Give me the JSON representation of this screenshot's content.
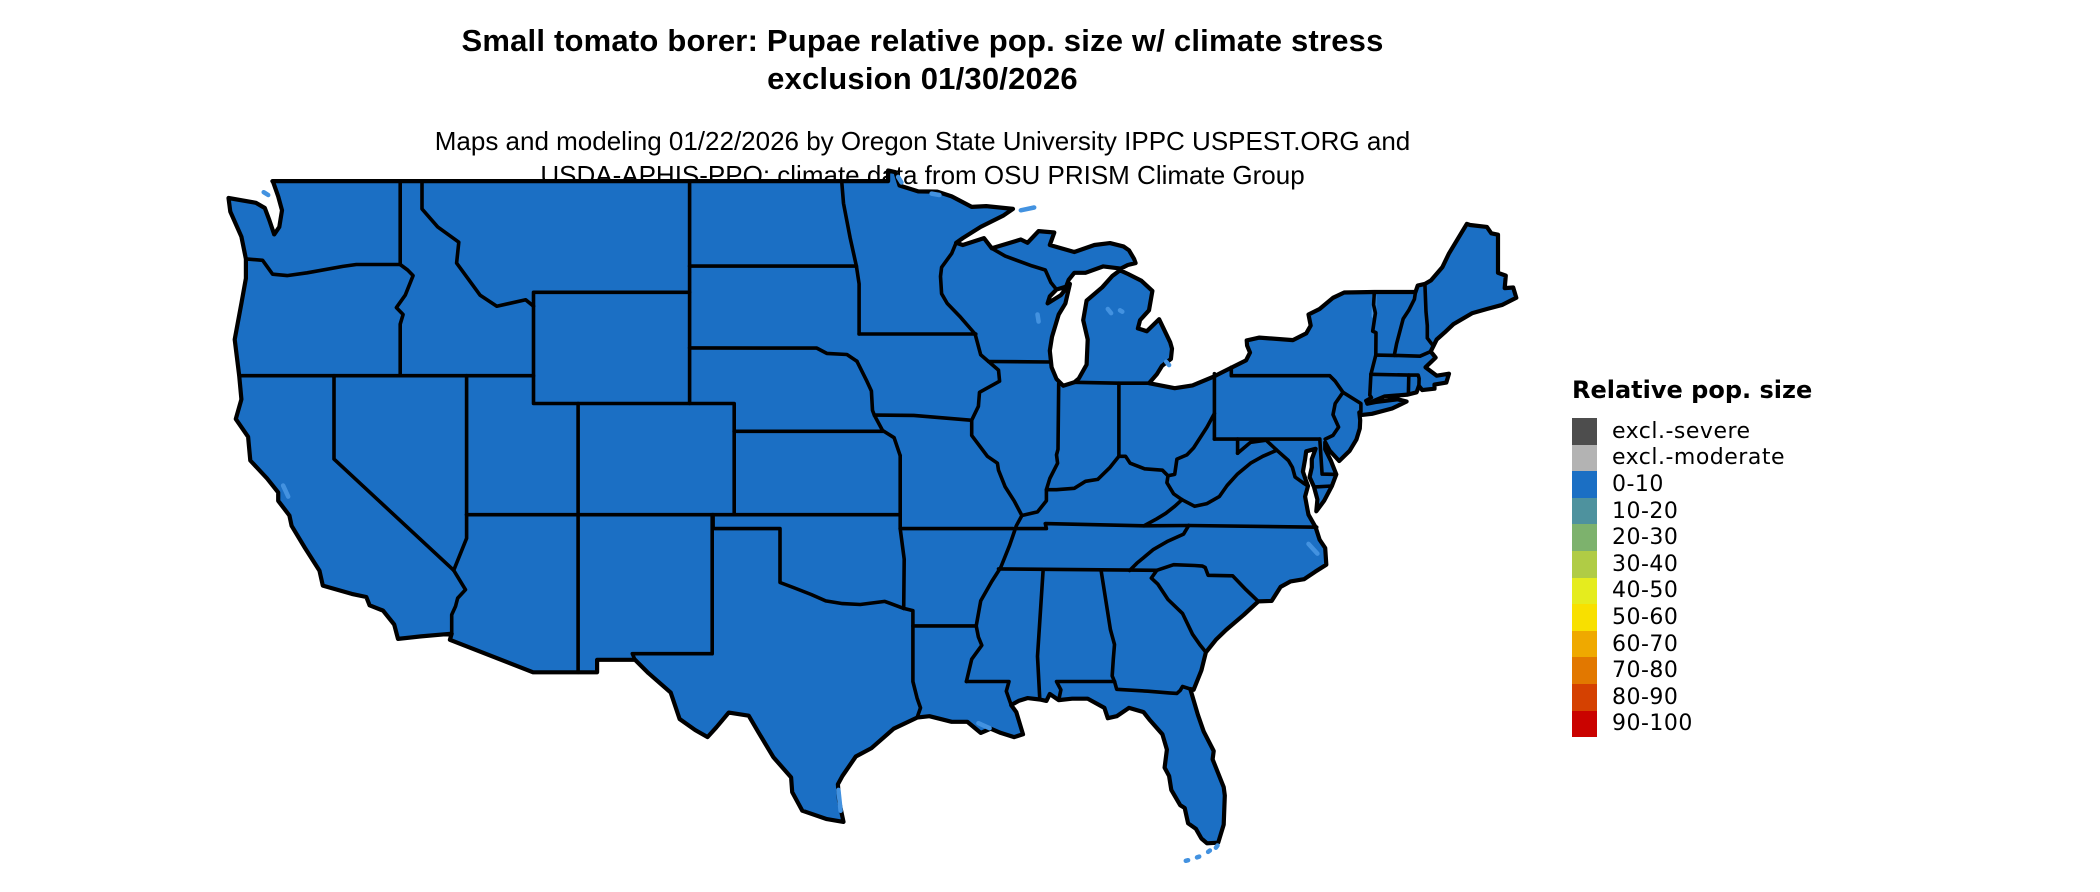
{
  "title": {
    "line1": "Small tomato borer: Pupae relative pop. size w/ climate stress",
    "line2": "exclusion 01/30/2026"
  },
  "subtitle": {
    "line1": "Maps and modeling 01/22/2026 by Oregon State University IPPC USPEST.ORG and",
    "line2": "USDA-APHIS-PPQ; climate data from OSU PRISM Climate Group"
  },
  "legend": {
    "title": "Relative pop. size",
    "items": [
      {
        "label": "excl.-severe",
        "color": "#4d4d4d"
      },
      {
        "label": "excl.-moderate",
        "color": "#b3b3b3"
      },
      {
        "label": "0-10",
        "color": "#1b6fc4"
      },
      {
        "label": "10-20",
        "color": "#4e929e"
      },
      {
        "label": "20-30",
        "color": "#7db26d"
      },
      {
        "label": "30-40",
        "color": "#b0cc45"
      },
      {
        "label": "40-50",
        "color": "#e5ec1e"
      },
      {
        "label": "50-60",
        "color": "#f8e000"
      },
      {
        "label": "60-70",
        "color": "#efa900"
      },
      {
        "label": "70-80",
        "color": "#e27800"
      },
      {
        "label": "80-90",
        "color": "#d54101"
      },
      {
        "label": "90-100",
        "color": "#ca0300"
      }
    ]
  },
  "map": {
    "region": "Contiguous United States",
    "all_states_class": "0-10",
    "state_fill": "#1b6fc4",
    "state_border": "#000000",
    "water_color": "#4392e0",
    "background": "#ffffff"
  }
}
